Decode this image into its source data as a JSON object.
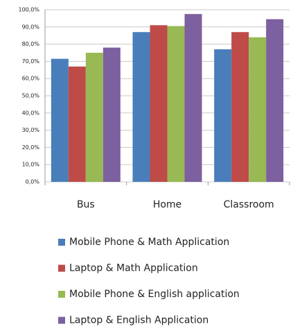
{
  "chart_data": {
    "type": "bar",
    "categories": [
      "Bus",
      "Home",
      "Classroom"
    ],
    "series": [
      {
        "name": "Mobile Phone & Math Application",
        "color": "#4a7ebb",
        "values": [
          71.5,
          87,
          77
        ]
      },
      {
        "name": "Laptop & Math Application",
        "color": "#be4b48",
        "values": [
          67,
          91,
          87
        ]
      },
      {
        "name": "Mobile Phone & English application",
        "color": "#98b954",
        "values": [
          75,
          90.5,
          84
        ]
      },
      {
        "name": "Laptop & English Application",
        "color": "#7d60a0",
        "values": [
          78,
          97.5,
          94.5
        ]
      }
    ],
    "ylim": [
      0,
      100
    ],
    "yticks": [
      {
        "value": 0,
        "label": "0,0%"
      },
      {
        "value": 10,
        "label": "10,0%"
      },
      {
        "value": 20,
        "label": "20,0%"
      },
      {
        "value": 30,
        "label": "30,0%"
      },
      {
        "value": 40,
        "label": "40,0%"
      },
      {
        "value": 50,
        "label": "50,0%"
      },
      {
        "value": 60,
        "label": "60,0%"
      },
      {
        "value": 70,
        "label": "70,0%"
      },
      {
        "value": 80,
        "label": "80,0%"
      },
      {
        "value": 90,
        "label": "90,0%"
      },
      {
        "value": 100,
        "label": "100,0%"
      }
    ],
    "grid": true,
    "legend": "bottom"
  }
}
